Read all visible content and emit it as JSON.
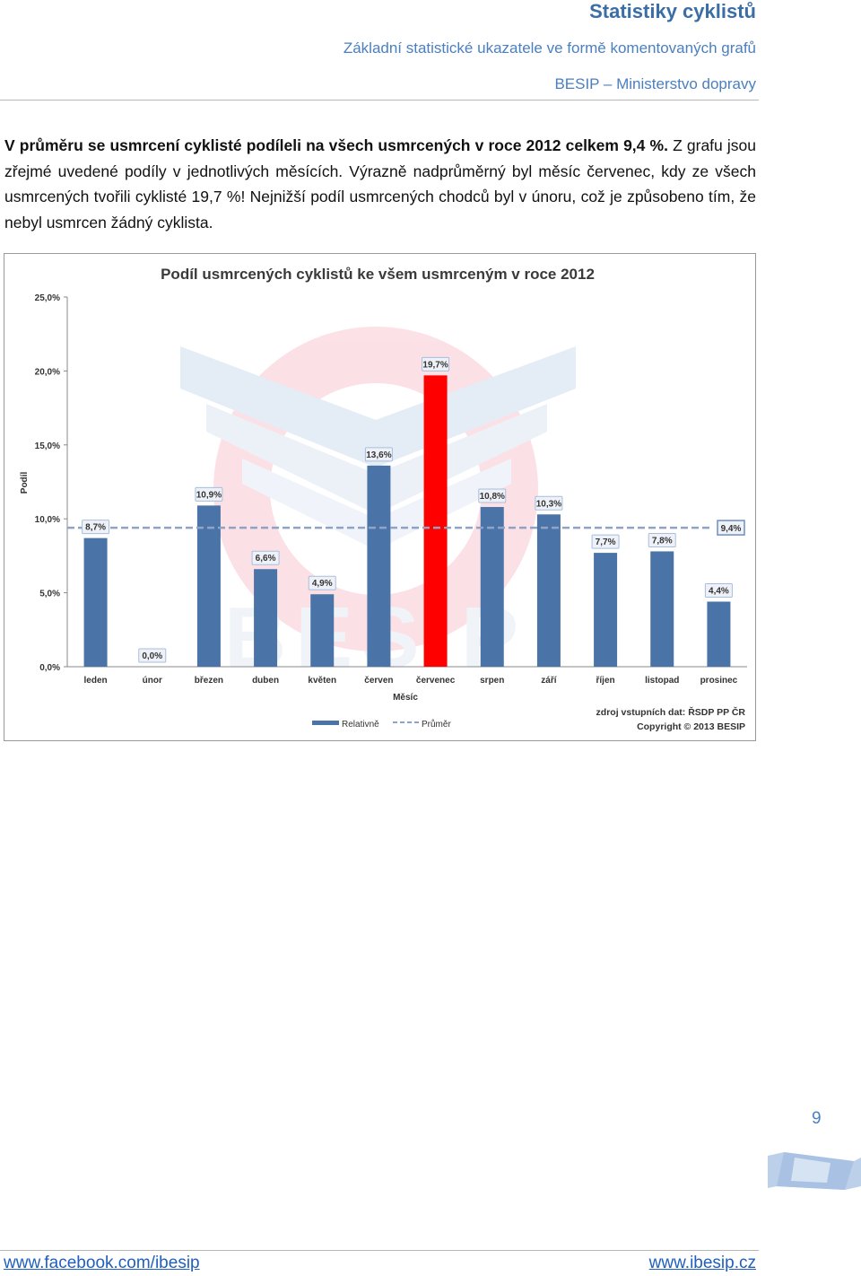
{
  "header": {
    "title": "Statistiky cyklistů",
    "subtitle": "Základní statistické ukazatele ve formě komentovaných grafů",
    "organization": "BESIP – Ministerstvo dopravy"
  },
  "paragraph": {
    "bold_text": "V průměru se usmrcení cyklisté podíleli na všech usmrcených v roce 2012 celkem 9,4 %.",
    "rest_text": " Z grafu jsou zřejmé uvedené podíly v jednotlivých měsících. Výrazně nadprůměrný byl měsíc červenec, kdy ze všech usmrcených tvořili cyklisté 19,7 %! Nejnižší podíl usmrcených chodců byl v únoru, což je způsobeno tím, že nebyl usmrcen žádný cyklista."
  },
  "chart_data": {
    "type": "bar",
    "title": "Podíl usmrcených cyklistů ke všem usmrceným v roce 2012",
    "xlabel": "Měsíc",
    "ylabel": "Podíl",
    "ylim": [
      0,
      25
    ],
    "yticks": [
      "0,0%",
      "5,0%",
      "10,0%",
      "15,0%",
      "20,0%",
      "25,0%"
    ],
    "grid": false,
    "legend_position": "bottom-left",
    "categories": [
      "leden",
      "únor",
      "březen",
      "duben",
      "květen",
      "červen",
      "červenec",
      "srpen",
      "září",
      "říjen",
      "listopad",
      "prosinec"
    ],
    "series": [
      {
        "name": "Relativně",
        "values": [
          8.7,
          0.0,
          10.9,
          6.6,
          4.9,
          13.6,
          19.7,
          10.8,
          10.3,
          7.7,
          7.8,
          4.4
        ],
        "labels": [
          "8,7%",
          "0,0%",
          "10,9%",
          "6,6%",
          "4,9%",
          "13,6%",
          "19,7%",
          "10,8%",
          "10,3%",
          "7,7%",
          "7,8%",
          "4,4%"
        ],
        "color": "#4a74a8",
        "highlight_index": 6,
        "highlight_color": "#ff0000"
      },
      {
        "name": "Průměr",
        "value": 9.4,
        "label": "9,4%",
        "style": "dashed",
        "color": "#8fa3c4"
      }
    ],
    "source_note": "zdroj vstupních dat: ŘSDP PP ČR",
    "copyright": "Copyright © 2013 BESIP"
  },
  "page_number": "9",
  "footer": {
    "left_link": "www.facebook.com/ibesip",
    "right_link": "www.ibesip.cz"
  }
}
